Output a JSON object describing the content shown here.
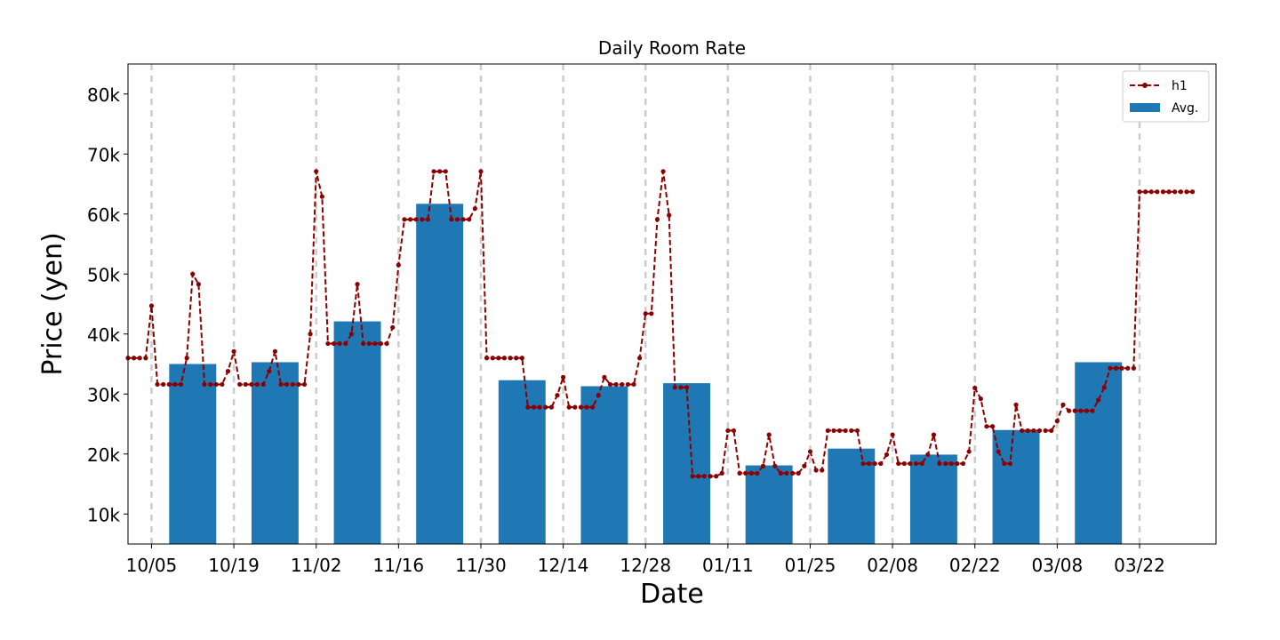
{
  "chart_data": {
    "type": "bar+line",
    "title": "Daily Room Rate",
    "xlabel": "Date",
    "ylabel": "Price (yen)",
    "ylim": [
      5000,
      85000
    ],
    "yticks": [
      {
        "value": 10000,
        "label": "10k"
      },
      {
        "value": 20000,
        "label": "20k"
      },
      {
        "value": 30000,
        "label": "30k"
      },
      {
        "value": 40000,
        "label": "40k"
      },
      {
        "value": 50000,
        "label": "50k"
      },
      {
        "value": 60000,
        "label": "60k"
      },
      {
        "value": 70000,
        "label": "70k"
      },
      {
        "value": 80000,
        "label": "80k"
      }
    ],
    "xrange": [
      "2025-10-01",
      "2026-04-04"
    ],
    "xticks": [
      {
        "date": "2025-10-05",
        "label": "10/05"
      },
      {
        "date": "2025-10-19",
        "label": "10/19"
      },
      {
        "date": "2025-11-02",
        "label": "11/02"
      },
      {
        "date": "2025-11-16",
        "label": "11/16"
      },
      {
        "date": "2025-11-30",
        "label": "11/30"
      },
      {
        "date": "2025-12-14",
        "label": "12/14"
      },
      {
        "date": "2025-12-28",
        "label": "12/28"
      },
      {
        "date": "2026-01-11",
        "label": "01/11"
      },
      {
        "date": "2026-01-25",
        "label": "01/25"
      },
      {
        "date": "2026-02-08",
        "label": "02/08"
      },
      {
        "date": "2026-02-22",
        "label": "02/22"
      },
      {
        "date": "2026-03-08",
        "label": "03/08"
      },
      {
        "date": "2026-03-22",
        "label": "03/22"
      }
    ],
    "grid": "vertical dashed at x ticks",
    "legend": "top-right",
    "series": [
      {
        "name": "h1",
        "kind": "line",
        "color": "#8b0000",
        "style": "dashed with dot markers",
        "start_date": "2025-10-01",
        "values": [
          36000,
          36000,
          36000,
          36000,
          44700,
          31600,
          31600,
          31600,
          31600,
          31600,
          36000,
          50000,
          48300,
          31600,
          31600,
          31600,
          31600,
          33800,
          37100,
          31600,
          31600,
          31600,
          31600,
          31600,
          33800,
          37100,
          31600,
          31600,
          31600,
          31600,
          31600,
          40000,
          67100,
          62900,
          38400,
          38400,
          38400,
          38400,
          40000,
          48300,
          38400,
          38400,
          38400,
          38400,
          38400,
          41100,
          51500,
          59100,
          59100,
          59100,
          59100,
          59100,
          67100,
          67100,
          67100,
          59100,
          59100,
          59100,
          59100,
          60900,
          67100,
          36000,
          36000,
          36000,
          36000,
          36000,
          36000,
          36000,
          27800,
          27800,
          27800,
          27800,
          27800,
          29800,
          32800,
          27800,
          27800,
          27800,
          27800,
          27800,
          29800,
          32800,
          31600,
          31600,
          31600,
          31600,
          31600,
          36000,
          43400,
          43400,
          59100,
          67100,
          59800,
          31100,
          31100,
          31100,
          16300,
          16300,
          16300,
          16300,
          16300,
          16800,
          23900,
          23900,
          16800,
          16800,
          16800,
          16800,
          18000,
          23200,
          18000,
          16800,
          16800,
          16800,
          16800,
          18000,
          20400,
          17300,
          17300,
          23900,
          23900,
          23900,
          23900,
          23900,
          23900,
          18400,
          18400,
          18400,
          18400,
          19900,
          23200,
          18400,
          18400,
          18400,
          18400,
          18400,
          19900,
          23200,
          18400,
          18400,
          18400,
          18400,
          18400,
          20400,
          31000,
          29200,
          24600,
          24600,
          20400,
          18400,
          18400,
          28200,
          23900,
          23900,
          23900,
          23900,
          23900,
          23900,
          25500,
          28200,
          27200,
          27200,
          27200,
          27200,
          27200,
          29000,
          31100,
          34300,
          34300,
          34300,
          34300,
          34300,
          63700,
          63700,
          63700,
          63700,
          63700,
          63700,
          63700,
          63700,
          63700,
          63700
        ]
      },
      {
        "name": "Avg.",
        "kind": "bar",
        "color": "#1f77b4",
        "bar_width_days": 8,
        "bars": [
          {
            "center": "2025-10-12",
            "value": 35000
          },
          {
            "center": "2025-10-26",
            "value": 35300
          },
          {
            "center": "2025-11-09",
            "value": 42100
          },
          {
            "center": "2025-11-23",
            "value": 61700
          },
          {
            "center": "2025-12-07",
            "value": 32300
          },
          {
            "center": "2025-12-21",
            "value": 31300
          },
          {
            "center": "2026-01-04",
            "value": 31800
          },
          {
            "center": "2026-01-18",
            "value": 18100
          },
          {
            "center": "2026-02-01",
            "value": 20900
          },
          {
            "center": "2026-02-15",
            "value": 19900
          },
          {
            "center": "2026-03-01",
            "value": 24000
          },
          {
            "center": "2026-03-15",
            "value": 35300
          }
        ]
      }
    ]
  }
}
